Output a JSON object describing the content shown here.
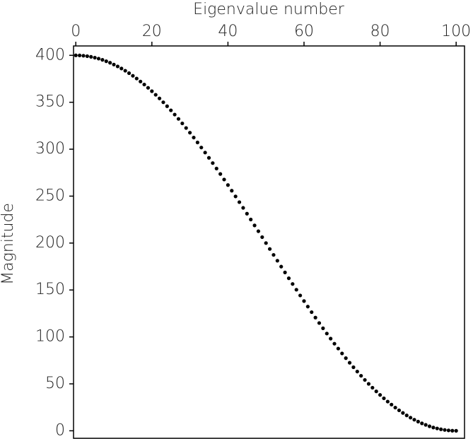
{
  "chart_data": {
    "type": "scatter",
    "x_label": "Eigenvalue number",
    "y_label": "Magnitude",
    "color": "#000000",
    "xlim": [
      -0.6,
      102.2
    ],
    "xticks": [
      0,
      20,
      40,
      60,
      80,
      100
    ],
    "ylim": [
      -8,
      410
    ],
    "yticks": [
      0,
      50,
      100,
      150,
      200,
      250,
      300,
      350,
      400
    ],
    "x": [
      0,
      1,
      2,
      3,
      4,
      5,
      6,
      7,
      8,
      9,
      10,
      11,
      12,
      13,
      14,
      15,
      16,
      17,
      18,
      19,
      20,
      21,
      22,
      23,
      24,
      25,
      26,
      27,
      28,
      29,
      30,
      31,
      32,
      33,
      34,
      35,
      36,
      37,
      38,
      39,
      40,
      41,
      42,
      43,
      44,
      45,
      46,
      47,
      48,
      49,
      50,
      51,
      52,
      53,
      54,
      55,
      56,
      57,
      58,
      59,
      60,
      61,
      62,
      63,
      64,
      65,
      66,
      67,
      68,
      69,
      70,
      71,
      72,
      73,
      74,
      75,
      76,
      77,
      78,
      79,
      80,
      81,
      82,
      83,
      84,
      85,
      86,
      87,
      88,
      89,
      90,
      91,
      92,
      93,
      94,
      95,
      96,
      97,
      98,
      99,
      100
    ],
    "values": [
      400,
      399.9,
      399.6,
      399.1,
      398.4,
      397.5,
      396.5,
      395.2,
      393.7,
      392.1,
      390.2,
      388.2,
      386.0,
      383.6,
      381.0,
      378.2,
      375.3,
      372.1,
      368.9,
      365.4,
      361.8,
      358.0,
      354.1,
      350.0,
      345.8,
      341.4,
      336.9,
      332.3,
      327.5,
      322.6,
      317.6,
      312.4,
      307.2,
      301.8,
      296.4,
      290.8,
      285.2,
      279.4,
      273.6,
      267.7,
      261.8,
      255.8,
      249.7,
      243.6,
      237.5,
      231.3,
      225.1,
      218.8,
      212.6,
      206.3,
      200,
      193.7,
      187.4,
      181.2,
      174.9,
      168.7,
      162.5,
      156.4,
      150.3,
      144.2,
      138.2,
      132.3,
      126.4,
      120.6,
      114.8,
      109.2,
      103.6,
      98.2,
      92.8,
      87.6,
      82.4,
      77.4,
      72.5,
      67.7,
      63.1,
      58.6,
      54.2,
      50.0,
      45.9,
      42.0,
      38.2,
      34.6,
      31.1,
      27.9,
      24.7,
      21.8,
      19.0,
      16.4,
      14.0,
      11.8,
      9.8,
      7.9,
      6.3,
      4.8,
      3.5,
      2.5,
      1.6,
      0.9,
      0.4,
      0.1,
      0
    ]
  }
}
